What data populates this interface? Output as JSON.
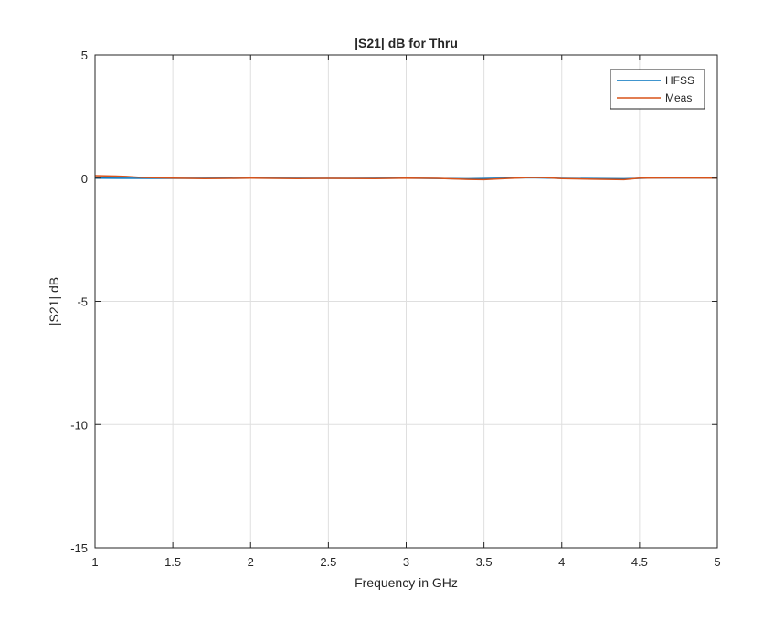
{
  "chart_data": {
    "type": "line",
    "title": "|S21| dB for Thru",
    "xlabel": "Frequency in GHz",
    "ylabel": "|S21| dB",
    "xlim": [
      1,
      5
    ],
    "ylim": [
      -15,
      5
    ],
    "xticks": [
      1,
      1.5,
      2,
      2.5,
      3,
      3.5,
      4,
      4.5,
      5
    ],
    "xtick_labels": [
      "1",
      "1.5",
      "2",
      "2.5",
      "3",
      "3.5",
      "4",
      "4.5",
      "5"
    ],
    "yticks": [
      -15,
      -10,
      -5,
      0,
      5
    ],
    "ytick_labels": [
      "-15",
      "-10",
      "-5",
      "0",
      "5"
    ],
    "grid": true,
    "legend_position": "top-right",
    "series": [
      {
        "name": "HFSS",
        "color": "#0072bd",
        "x": [
          1.0,
          1.5,
          2.0,
          2.5,
          3.0,
          3.4,
          3.8,
          4.0,
          4.4,
          4.6,
          5.0
        ],
        "y": [
          0.0,
          -0.01,
          0.0,
          -0.01,
          0.0,
          -0.03,
          0.02,
          -0.01,
          -0.03,
          0.01,
          0.0
        ]
      },
      {
        "name": "Meas",
        "color": "#d95319",
        "x": [
          1.0,
          1.1,
          1.2,
          1.3,
          1.5,
          1.7,
          2.0,
          2.3,
          2.5,
          2.8,
          3.0,
          3.2,
          3.4,
          3.5,
          3.6,
          3.8,
          3.9,
          4.0,
          4.2,
          4.4,
          4.5,
          4.7,
          5.0
        ],
        "y": [
          0.1,
          0.09,
          0.07,
          0.03,
          0.0,
          -0.02,
          0.0,
          -0.02,
          -0.01,
          -0.02,
          0.0,
          -0.01,
          -0.05,
          -0.06,
          -0.03,
          0.03,
          0.02,
          -0.02,
          -0.04,
          -0.06,
          0.0,
          0.01,
          0.0
        ]
      }
    ]
  }
}
